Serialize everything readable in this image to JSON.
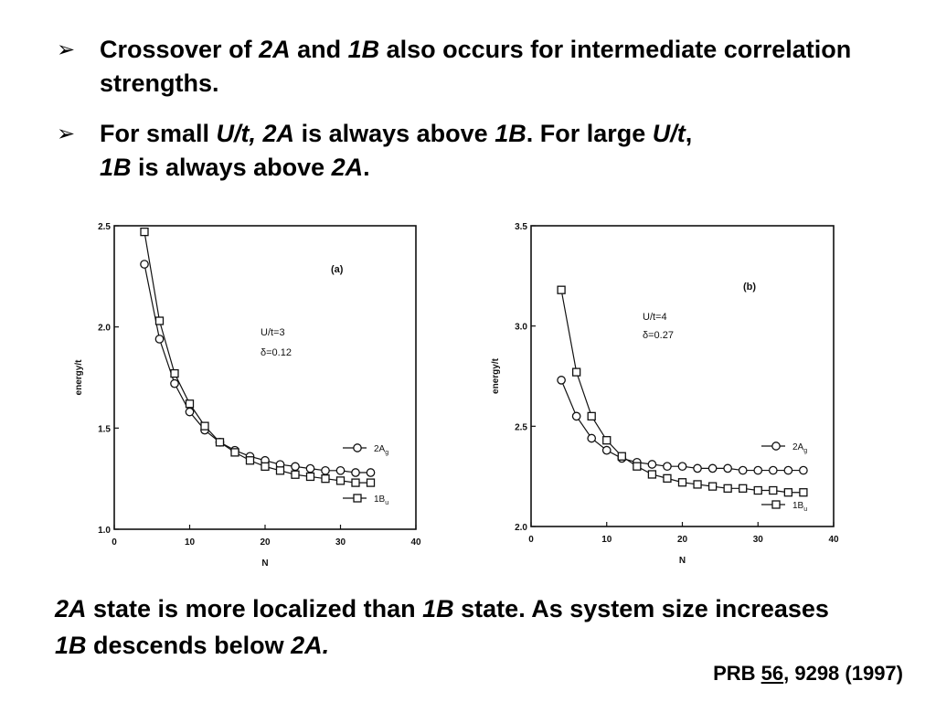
{
  "bullets": {
    "b1": {
      "marker": "➢",
      "p1": "Crossover of ",
      "i1": "2A",
      "p2": " and ",
      "i2": "1B",
      "p3": " also occurs for intermediate correlation strengths."
    },
    "b2": {
      "marker": "➢",
      "p1": "For small ",
      "i1": "U/t, 2A",
      "p2": " is always above ",
      "i2": "1B",
      "p3": ". For large ",
      "i3": "U/t",
      "p4": ", ",
      "i4": "1B",
      "p5": " is always above ",
      "i5": "2A",
      "p6": "."
    }
  },
  "chart_data": [
    {
      "type": "line",
      "panel_label": "(a)",
      "param_line1": "U/t=3",
      "param_line2": "δ=0.12",
      "xlabel": "N",
      "ylabel": "energy/t",
      "xlim": [
        0,
        40
      ],
      "ylim": [
        1.0,
        2.5
      ],
      "xticks": [
        0,
        10,
        20,
        30,
        40
      ],
      "yticks": [
        1.0,
        1.5,
        2.0,
        2.5
      ],
      "legend_position": "right",
      "series": [
        {
          "name": "2A",
          "name_sub": "g",
          "marker": "circle",
          "x": [
            4,
            6,
            8,
            10,
            12,
            14,
            16,
            18,
            20,
            22,
            24,
            26,
            28,
            30,
            32,
            34
          ],
          "values": [
            2.31,
            1.94,
            1.72,
            1.58,
            1.49,
            1.43,
            1.39,
            1.36,
            1.34,
            1.32,
            1.31,
            1.3,
            1.29,
            1.29,
            1.28,
            1.28
          ]
        },
        {
          "name": "1B",
          "name_sub": "u",
          "marker": "square",
          "x": [
            4,
            6,
            8,
            10,
            12,
            14,
            16,
            18,
            20,
            22,
            24,
            26,
            28,
            30,
            32,
            34
          ],
          "values": [
            2.47,
            2.03,
            1.77,
            1.62,
            1.51,
            1.43,
            1.38,
            1.34,
            1.31,
            1.29,
            1.27,
            1.26,
            1.25,
            1.24,
            1.23,
            1.23
          ]
        }
      ]
    },
    {
      "type": "line",
      "panel_label": "(b)",
      "param_line1": "U/t=4",
      "param_line2": "δ=0.27",
      "xlabel": "N",
      "ylabel": "energy/t",
      "xlim": [
        0,
        40
      ],
      "ylim": [
        2.0,
        3.5
      ],
      "xticks": [
        0,
        10,
        20,
        30,
        40
      ],
      "yticks": [
        2.0,
        2.5,
        3.0,
        3.5
      ],
      "legend_position": "right",
      "series": [
        {
          "name": "2A",
          "name_sub": "g",
          "marker": "circle",
          "x": [
            4,
            6,
            8,
            10,
            12,
            14,
            16,
            18,
            20,
            22,
            24,
            26,
            28,
            30,
            32,
            34,
            36
          ],
          "values": [
            2.73,
            2.55,
            2.44,
            2.38,
            2.34,
            2.32,
            2.31,
            2.3,
            2.3,
            2.29,
            2.29,
            2.29,
            2.28,
            2.28,
            2.28,
            2.28,
            2.28
          ]
        },
        {
          "name": "1B",
          "name_sub": "u",
          "marker": "square",
          "x": [
            4,
            6,
            8,
            10,
            12,
            14,
            16,
            18,
            20,
            22,
            24,
            26,
            28,
            30,
            32,
            34,
            36
          ],
          "values": [
            3.18,
            2.77,
            2.55,
            2.43,
            2.35,
            2.3,
            2.26,
            2.24,
            2.22,
            2.21,
            2.2,
            2.19,
            2.19,
            2.18,
            2.18,
            2.17,
            2.17
          ]
        }
      ]
    }
  ],
  "conclusion": {
    "i1": "2A",
    "p1": " state is more localized than ",
    "i2": "1B",
    "p2": " state. As system size increases ",
    "i3": "1B",
    "p3": " descends below ",
    "i4": "2A."
  },
  "citation": {
    "prefix": "PRB ",
    "volume": "56",
    "suffix": ", 9298 (1997)"
  }
}
